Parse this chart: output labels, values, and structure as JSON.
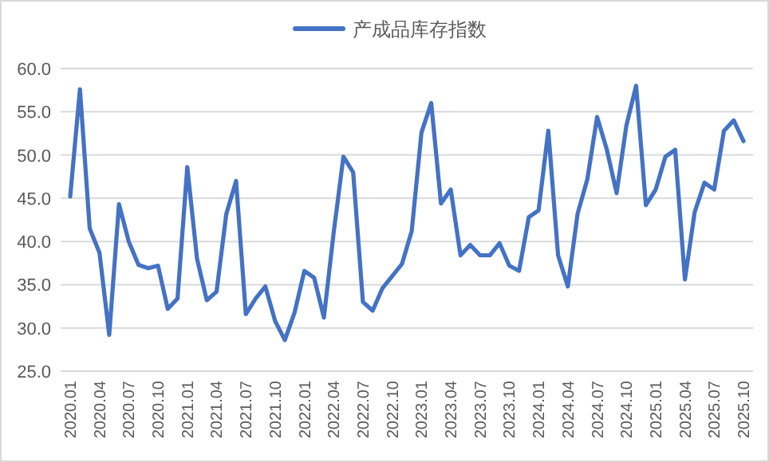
{
  "chart_data": {
    "type": "line",
    "legend": "top",
    "grid": "y",
    "marker": "none",
    "line_style": "solid",
    "categories": [
      "2020.01",
      null,
      null,
      "2020.04",
      null,
      null,
      "2020.07",
      null,
      null,
      "2020.10",
      null,
      null,
      "2021.01",
      null,
      null,
      "2021.04",
      null,
      null,
      "2021.07",
      null,
      null,
      "2021.10",
      null,
      null,
      "2022.01",
      null,
      null,
      "2022.04",
      null,
      null,
      "2022.07",
      null,
      null,
      "2022.10",
      null,
      null,
      "2023.01",
      null,
      null,
      "2023.04",
      null,
      null,
      "2023.07",
      null,
      null,
      "2023.10",
      null,
      null,
      "2024.01",
      null,
      null,
      "2024.04",
      null,
      null,
      "2024.07",
      null,
      null,
      "2024.10",
      null,
      null,
      "2025.01",
      null,
      null,
      "2025.04",
      null,
      null,
      "2025.07",
      null,
      null,
      "2025.10"
    ],
    "ylim": [
      25,
      60
    ],
    "yticks": [
      {
        "value": 25,
        "label": "25.0"
      },
      {
        "value": 30,
        "label": "30.0"
      },
      {
        "value": 35,
        "label": "35.0"
      },
      {
        "value": 40,
        "label": "40.0"
      },
      {
        "value": 45,
        "label": "45.0"
      },
      {
        "value": 50,
        "label": "50.0"
      },
      {
        "value": 55,
        "label": "55.0"
      },
      {
        "value": 60,
        "label": "60.0"
      }
    ],
    "series": [
      {
        "name": "产成品库存指数",
        "color": "#4472c4",
        "values": [
          45.2,
          57.6,
          41.5,
          38.7,
          29.2,
          44.3,
          40.0,
          37.3,
          36.9,
          37.2,
          32.2,
          33.4,
          48.6,
          38.0,
          33.2,
          34.2,
          43.2,
          47.0,
          31.6,
          33.4,
          34.8,
          30.8,
          28.6,
          31.8,
          36.6,
          35.8,
          31.2,
          41.0,
          49.8,
          48.0,
          33.0,
          32.0,
          34.6,
          36.0,
          37.4,
          41.2,
          52.6,
          56.0,
          44.4,
          46.0,
          38.4,
          39.6,
          38.4,
          38.4,
          39.8,
          37.2,
          36.6,
          42.8,
          43.6,
          52.8,
          38.4,
          34.8,
          43.2,
          47.2,
          54.4,
          50.6,
          45.6,
          53.4,
          58.0,
          44.2,
          46.0,
          49.8,
          50.6,
          35.6,
          43.4,
          46.8,
          46.0,
          52.8,
          54.0,
          51.6
        ]
      }
    ]
  }
}
